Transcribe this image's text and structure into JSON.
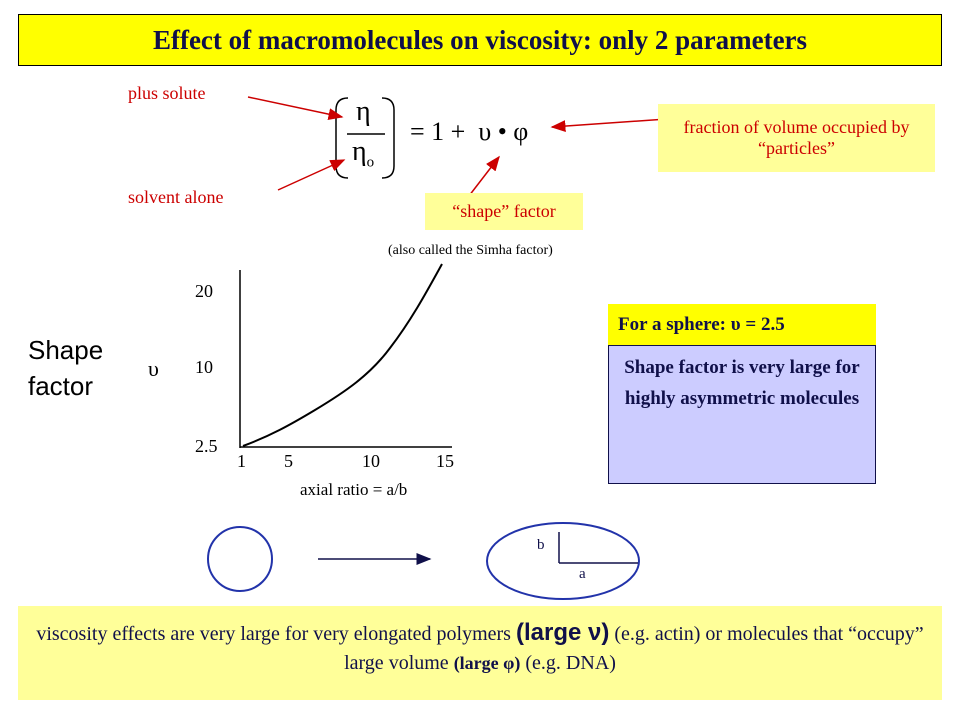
{
  "header": {
    "title": "Effect of macromolecules on viscosity: only 2 parameters"
  },
  "equation": {
    "numerator": "η",
    "denominator": "η",
    "denominator_subscript": "o",
    "rhs": "= 1 +  υ • φ"
  },
  "annotations": {
    "plus_solute": "plus solute",
    "solvent_alone": "solvent alone",
    "volume_fraction": "fraction of volume occupied by “particles”",
    "shape_factor": "“shape” factor",
    "simha": "(also called the Simha factor)"
  },
  "graph": {
    "y_title": "Shape factor",
    "y_symbol": "υ",
    "y_tick_labels": [
      "20",
      "10",
      "2.5"
    ],
    "x_tick_labels": [
      "1",
      "5",
      "10",
      "15"
    ],
    "x_title": "axial ratio = a/b"
  },
  "sphere_box": {
    "heading": "For a sphere: υ = 2.5",
    "body": "Shape factor is very large for highly asymmetric molecules"
  },
  "diagram": {
    "b_label": "b",
    "a_label": "a"
  },
  "footer": {
    "parts": [
      "viscosity effects are very large for very elongated polymers ",
      "(large ν)",
      " (e.g. actin) or molecules that “occupy” large volume ",
      "(large φ)",
      " (e.g. DNA)"
    ]
  }
}
